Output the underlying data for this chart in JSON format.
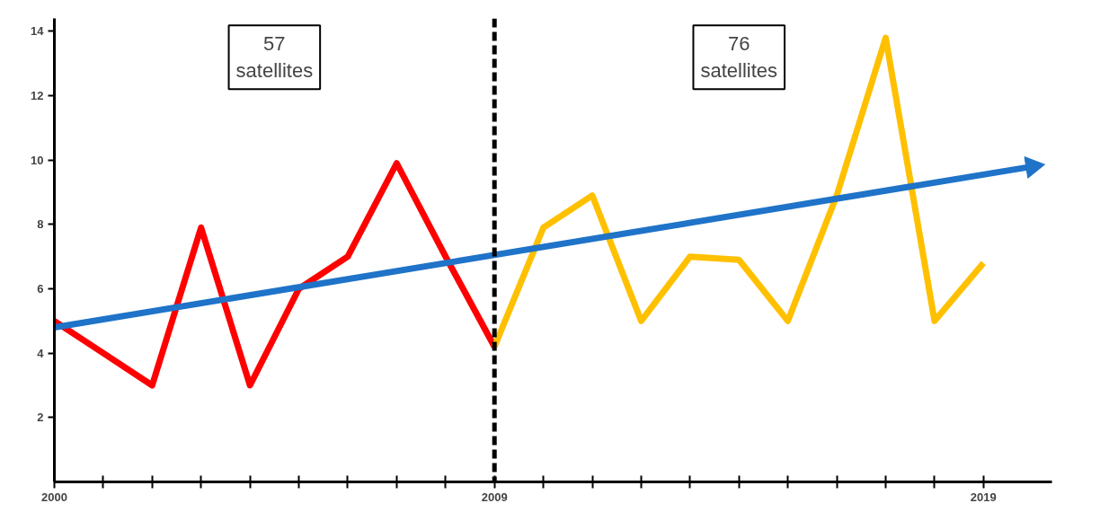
{
  "chart_data": {
    "type": "line",
    "x": [
      2000,
      2001,
      2002,
      2003,
      2004,
      2005,
      2006,
      2007,
      2008,
      2009,
      2010,
      2011,
      2012,
      2013,
      2014,
      2015,
      2016,
      2017,
      2018,
      2019
    ],
    "series": [
      {
        "color": "#ff0000",
        "values": [
          5,
          4,
          3,
          7.9,
          3,
          6,
          7,
          9.9,
          7,
          4.2,
          null,
          null,
          null,
          null,
          null,
          null,
          null,
          null,
          null,
          null
        ]
      },
      {
        "color": "#ffc000",
        "values": [
          null,
          null,
          null,
          null,
          null,
          null,
          null,
          null,
          null,
          4.2,
          7.9,
          8.9,
          5,
          7,
          6.9,
          5,
          8.9,
          13.8,
          5,
          6.8
        ]
      },
      {
        "type": "line",
        "marker": "triangle",
        "color": "#1f73c8",
        "x": [
          2000,
          2020
        ],
        "values": [
          4.8,
          9.8
        ]
      }
    ],
    "xlim": [
      2000,
      2020.4
    ],
    "ylim": [
      0,
      14.4
    ],
    "xticks": [
      2000,
      {
        "value": 2001,
        "label": null
      },
      {
        "value": 2002,
        "label": null
      },
      {
        "value": 2003,
        "label": null
      },
      {
        "value": 2004,
        "label": null
      },
      {
        "value": 2005,
        "label": null
      },
      {
        "value": 2006,
        "label": null
      },
      {
        "value": 2007,
        "label": null
      },
      {
        "value": 2008,
        "label": null
      },
      2009,
      {
        "value": 2010,
        "label": null
      },
      {
        "value": 2011,
        "label": null
      },
      {
        "value": 2012,
        "label": null
      },
      {
        "value": 2013,
        "label": null
      },
      {
        "value": 2014,
        "label": null
      },
      {
        "value": 2015,
        "label": null
      },
      {
        "value": 2016,
        "label": null
      },
      {
        "value": 2017,
        "label": null
      },
      {
        "value": 2018,
        "label": null
      },
      2019
    ],
    "yticks": [
      2,
      4,
      6,
      8,
      10,
      12,
      14
    ],
    "ref_lines": [
      {
        "axis": "x",
        "value": 2009,
        "color": "#000000",
        "line_style": "dashed"
      }
    ],
    "annotations": [
      "57\nsatellites",
      "76\nsatellites"
    ],
    "grid": false,
    "line_style": "solid",
    "marker": "none"
  }
}
